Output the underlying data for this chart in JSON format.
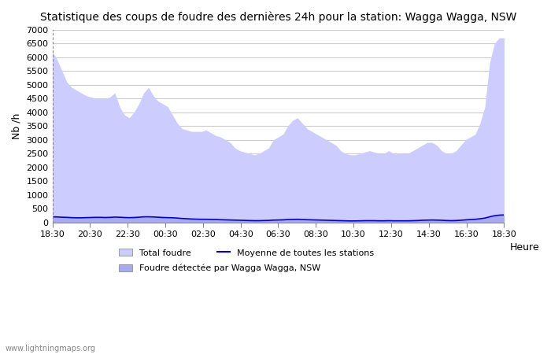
{
  "title": "Statistique des coups de foudre des dernières 24h pour la station: Wagga Wagga, NSW",
  "xlabel": "Heure",
  "ylabel": "Nb /h",
  "ylim": [
    0,
    7000
  ],
  "yticks": [
    0,
    500,
    1000,
    1500,
    2000,
    2500,
    3000,
    3500,
    4000,
    4500,
    5000,
    5500,
    6000,
    6500,
    7000
  ],
  "xtick_labels": [
    "18:30",
    "20:30",
    "22:30",
    "00:30",
    "02:30",
    "04:30",
    "06:30",
    "08:30",
    "10:30",
    "12:30",
    "14:30",
    "16:30",
    "18:30"
  ],
  "background_color": "#ffffff",
  "grid_color": "#cccccc",
  "fill_total_color": "#ccccff",
  "fill_local_color": "#aaaaee",
  "mean_line_color": "#0000dd",
  "watermark": "www.lightningmaps.org",
  "legend_total": "Total foudre",
  "legend_local": "Foudre détectée par Wagga Wagga, NSW",
  "legend_mean": "Moyenne de toutes les stations",
  "total_foudre": [
    6200,
    5900,
    5500,
    5100,
    4900,
    4800,
    4700,
    4600,
    4550,
    4500,
    4500,
    4500,
    4550,
    4700,
    4200,
    3900,
    3800,
    4000,
    4300,
    4700,
    4900,
    4600,
    4400,
    4300,
    4200,
    3900,
    3600,
    3400,
    3350,
    3300,
    3300,
    3300,
    3350,
    3250,
    3150,
    3100,
    3000,
    2900,
    2700,
    2600,
    2550,
    2500,
    2450,
    2500,
    2600,
    2700,
    3000,
    3100,
    3200,
    3500,
    3700,
    3800,
    3600,
    3400,
    3300,
    3200,
    3100,
    3000,
    2900,
    2800,
    2600,
    2500,
    2450,
    2450,
    2500,
    2550,
    2600,
    2550,
    2500,
    2500,
    2600,
    2500,
    2500,
    2500,
    2500,
    2600,
    2700,
    2800,
    2900,
    2900,
    2800,
    2600,
    2500,
    2500,
    2600,
    2800,
    3000,
    3100,
    3200,
    3600,
    4200,
    5800,
    6500,
    6700,
    6700
  ],
  "local_foudre": [
    200,
    195,
    185,
    180,
    170,
    165,
    165,
    170,
    175,
    180,
    180,
    175,
    180,
    190,
    185,
    175,
    170,
    175,
    185,
    200,
    200,
    195,
    185,
    175,
    170,
    165,
    155,
    140,
    130,
    120,
    115,
    110,
    110,
    105,
    100,
    95,
    90,
    85,
    80,
    75,
    70,
    65,
    60,
    60,
    65,
    70,
    80,
    85,
    90,
    100,
    105,
    110,
    100,
    95,
    90,
    85,
    80,
    75,
    70,
    65,
    60,
    55,
    50,
    50,
    55,
    60,
    60,
    60,
    55,
    55,
    60,
    55,
    55,
    55,
    55,
    60,
    65,
    75,
    80,
    85,
    80,
    75,
    65,
    60,
    65,
    75,
    90,
    100,
    110,
    130,
    155,
    200,
    240,
    260,
    270
  ],
  "mean_line": [
    200,
    195,
    185,
    180,
    170,
    165,
    165,
    170,
    175,
    180,
    180,
    175,
    180,
    190,
    185,
    175,
    170,
    175,
    185,
    200,
    200,
    195,
    185,
    175,
    170,
    165,
    155,
    140,
    130,
    120,
    115,
    110,
    110,
    105,
    100,
    95,
    90,
    85,
    80,
    75,
    70,
    65,
    60,
    60,
    65,
    70,
    80,
    85,
    90,
    100,
    105,
    110,
    100,
    95,
    90,
    85,
    80,
    75,
    70,
    65,
    60,
    55,
    50,
    50,
    55,
    60,
    60,
    60,
    55,
    55,
    60,
    55,
    55,
    55,
    55,
    60,
    65,
    75,
    80,
    85,
    80,
    75,
    65,
    60,
    65,
    75,
    90,
    100,
    110,
    130,
    155,
    200,
    240,
    260,
    270
  ]
}
